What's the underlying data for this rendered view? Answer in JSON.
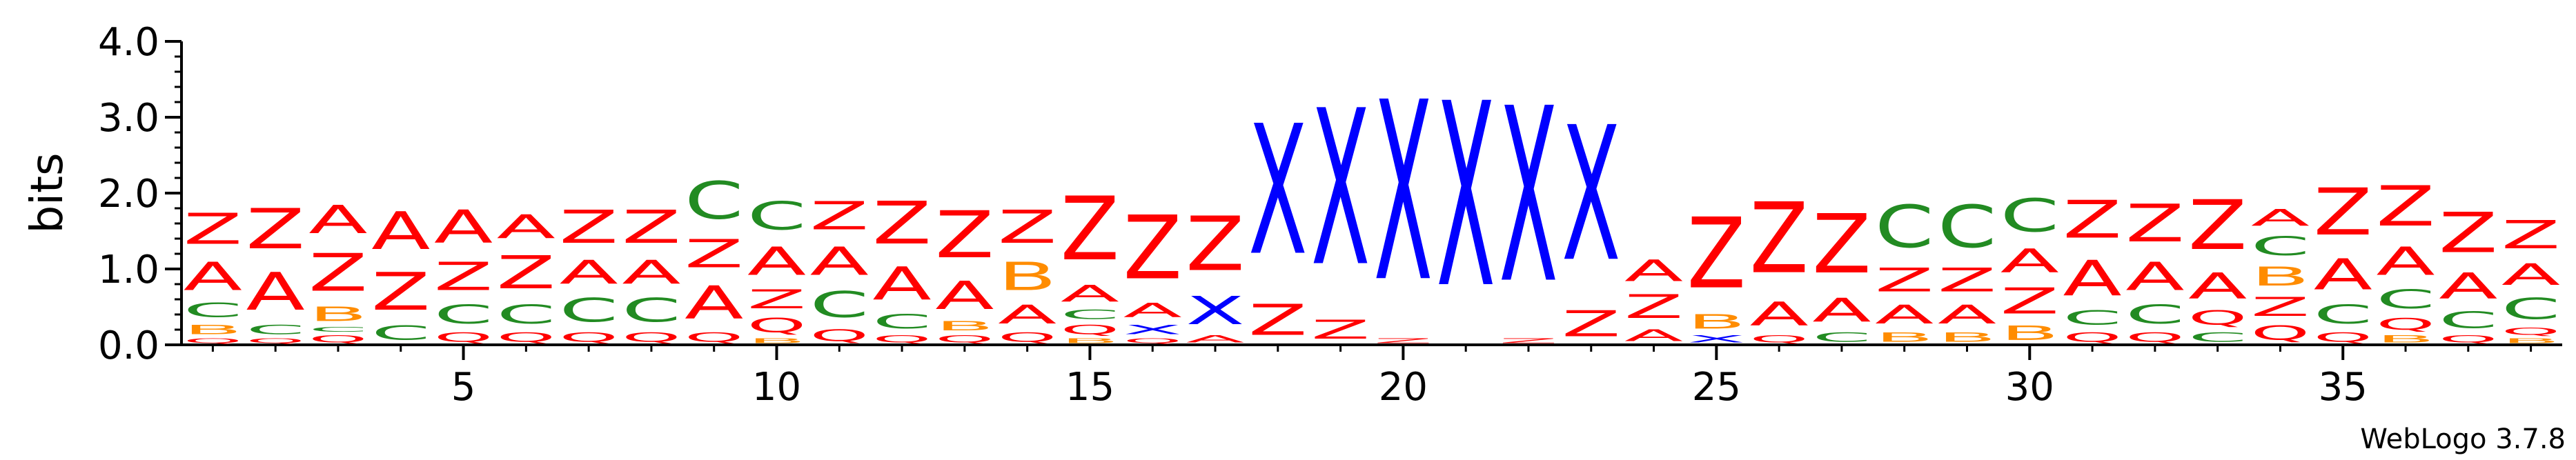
{
  "chart_data": {
    "type": "sequence-logo",
    "ylabel": "bits",
    "ylim": [
      0,
      4.0
    ],
    "yticks": [
      {
        "value": 0.0,
        "label": "0.0"
      },
      {
        "value": 1.0,
        "label": "1.0"
      },
      {
        "value": 2.0,
        "label": "2.0"
      },
      {
        "value": 3.0,
        "label": "3.0"
      },
      {
        "value": 4.0,
        "label": "4.0"
      }
    ],
    "xticks": [
      {
        "value": 5,
        "label": "5"
      },
      {
        "value": 10,
        "label": "10"
      },
      {
        "value": 15,
        "label": "15"
      },
      {
        "value": 20,
        "label": "20"
      },
      {
        "value": 25,
        "label": "25"
      },
      {
        "value": 30,
        "label": "30"
      },
      {
        "value": 35,
        "label": "35"
      }
    ],
    "positions": 38,
    "colors": {
      "Z": "#ff0000",
      "A": "#ff0000",
      "C": "#228b22",
      "X": "#0000ff",
      "B": "#ff8c00",
      "Q": "#ff0000"
    },
    "stacks": [
      [
        [
          "Q",
          0.1
        ],
        [
          "B",
          0.2
        ],
        [
          "C",
          0.3
        ],
        [
          "A",
          0.6
        ],
        [
          "Z",
          0.65
        ]
      ],
      [
        [
          "Q",
          0.1
        ],
        [
          "C",
          0.2
        ],
        [
          "A",
          0.8
        ],
        [
          "Z",
          0.85
        ]
      ],
      [
        [
          "Q",
          0.15
        ],
        [
          "C",
          0.1
        ],
        [
          "B",
          0.3
        ],
        [
          "Z",
          0.8
        ],
        [
          "A",
          0.6
        ]
      ],
      [
        [
          "C",
          0.3
        ],
        [
          "Z",
          0.8
        ],
        [
          "A",
          0.8
        ]
      ],
      [
        [
          "Q",
          0.2
        ],
        [
          "C",
          0.4
        ],
        [
          "Z",
          0.6
        ],
        [
          "A",
          0.7
        ]
      ],
      [
        [
          "Q",
          0.2
        ],
        [
          "C",
          0.4
        ],
        [
          "Z",
          0.7
        ],
        [
          "A",
          0.5
        ]
      ],
      [
        [
          "Q",
          0.2
        ],
        [
          "C",
          0.5
        ],
        [
          "A",
          0.5
        ],
        [
          "Z",
          0.7
        ]
      ],
      [
        [
          "Q",
          0.2
        ],
        [
          "C",
          0.5
        ],
        [
          "A",
          0.5
        ],
        [
          "Z",
          0.7
        ]
      ],
      [
        [
          "Q",
          0.2
        ],
        [
          "A",
          0.7
        ],
        [
          "Z",
          0.6
        ],
        [
          "C",
          0.8
        ]
      ],
      [
        [
          "B",
          0.1
        ],
        [
          "Q",
          0.3
        ],
        [
          "Z",
          0.4
        ],
        [
          "A",
          0.6
        ],
        [
          "C",
          0.6
        ]
      ],
      [
        [
          "Q",
          0.25
        ],
        [
          "C",
          0.55
        ],
        [
          "A",
          0.6
        ],
        [
          "Z",
          0.6
        ]
      ],
      [
        [
          "Q",
          0.15
        ],
        [
          "C",
          0.3
        ],
        [
          "A",
          0.7
        ],
        [
          "Z",
          0.9
        ]
      ],
      [
        [
          "Q",
          0.15
        ],
        [
          "B",
          0.2
        ],
        [
          "A",
          0.6
        ],
        [
          "Z",
          1.0
        ]
      ],
      [
        [
          "Q",
          0.2
        ],
        [
          "A",
          0.4
        ],
        [
          "B",
          0.6
        ],
        [
          "Z",
          0.7
        ]
      ],
      [
        [
          "B",
          0.1
        ],
        [
          "Q",
          0.2
        ],
        [
          "C",
          0.2
        ],
        [
          "A",
          0.35
        ],
        [
          "Z",
          1.35
        ]
      ],
      [
        [
          "Q",
          0.1
        ],
        [
          "X",
          0.2
        ],
        [
          "A",
          0.3
        ],
        [
          "Z",
          1.35
        ]
      ],
      [
        [
          "A",
          0.15
        ],
        [
          "X",
          0.6
        ],
        [
          "Z",
          1.15
        ]
      ],
      [
        [
          "Z",
          0.65
        ],
        [
          "X",
          2.75
        ]
      ],
      [
        [
          "Z",
          0.4
        ],
        [
          "X",
          3.3
        ]
      ],
      [
        [
          "Z",
          0.1
        ],
        [
          "X",
          3.8
        ]
      ],
      [
        [
          "X",
          3.9
        ]
      ],
      [
        [
          "Z",
          0.1
        ],
        [
          "X",
          3.7
        ]
      ],
      [
        [
          "Z",
          0.55
        ],
        [
          "X",
          2.85
        ]
      ],
      [
        [
          "A",
          0.25
        ],
        [
          "Z",
          0.5
        ],
        [
          "A",
          0.45
        ]
      ],
      [
        [
          "X",
          0.15
        ],
        [
          "B",
          0.3
        ],
        [
          "Z",
          1.5
        ]
      ],
      [
        [
          "Q",
          0.15
        ],
        [
          "A",
          0.5
        ],
        [
          "Z",
          1.5
        ]
      ],
      [
        [
          "C",
          0.2
        ],
        [
          "A",
          0.5
        ],
        [
          "Z",
          1.25
        ]
      ],
      [
        [
          "B",
          0.2
        ],
        [
          "A",
          0.4
        ],
        [
          "Z",
          0.5
        ],
        [
          "C",
          0.9
        ]
      ],
      [
        [
          "B",
          0.2
        ],
        [
          "A",
          0.4
        ],
        [
          "Z",
          0.5
        ],
        [
          "C",
          0.9
        ]
      ],
      [
        [
          "B",
          0.3
        ],
        [
          "Z",
          0.55
        ],
        [
          "A",
          0.5
        ],
        [
          "C",
          0.7
        ]
      ],
      [
        [
          "Q",
          0.2
        ],
        [
          "C",
          0.3
        ],
        [
          "A",
          0.75
        ],
        [
          "Z",
          0.8
        ]
      ],
      [
        [
          "Q",
          0.2
        ],
        [
          "C",
          0.4
        ],
        [
          "A",
          0.6
        ],
        [
          "Z",
          0.8
        ]
      ],
      [
        [
          "C",
          0.2
        ],
        [
          "Q",
          0.3
        ],
        [
          "A",
          0.55
        ],
        [
          "Z",
          1.05
        ]
      ],
      [
        [
          "Q",
          0.3
        ],
        [
          "Z",
          0.4
        ],
        [
          "B",
          0.4
        ],
        [
          "C",
          0.4
        ],
        [
          "A",
          0.35
        ]
      ],
      [
        [
          "Q",
          0.2
        ],
        [
          "C",
          0.4
        ],
        [
          "A",
          0.65
        ],
        [
          "Z",
          1.0
        ]
      ],
      [
        [
          "B",
          0.15
        ],
        [
          "Q",
          0.25
        ],
        [
          "C",
          0.4
        ],
        [
          "A",
          0.6
        ],
        [
          "Z",
          0.85
        ]
      ],
      [
        [
          "Q",
          0.15
        ],
        [
          "C",
          0.35
        ],
        [
          "A",
          0.55
        ],
        [
          "Z",
          0.85
        ]
      ],
      [
        [
          "B",
          0.1
        ],
        [
          "Q",
          0.15
        ],
        [
          "C",
          0.45
        ],
        [
          "A",
          0.45
        ],
        [
          "Z",
          0.6
        ]
      ]
    ]
  },
  "footer": {
    "version": "WebLogo 3.7.8"
  }
}
